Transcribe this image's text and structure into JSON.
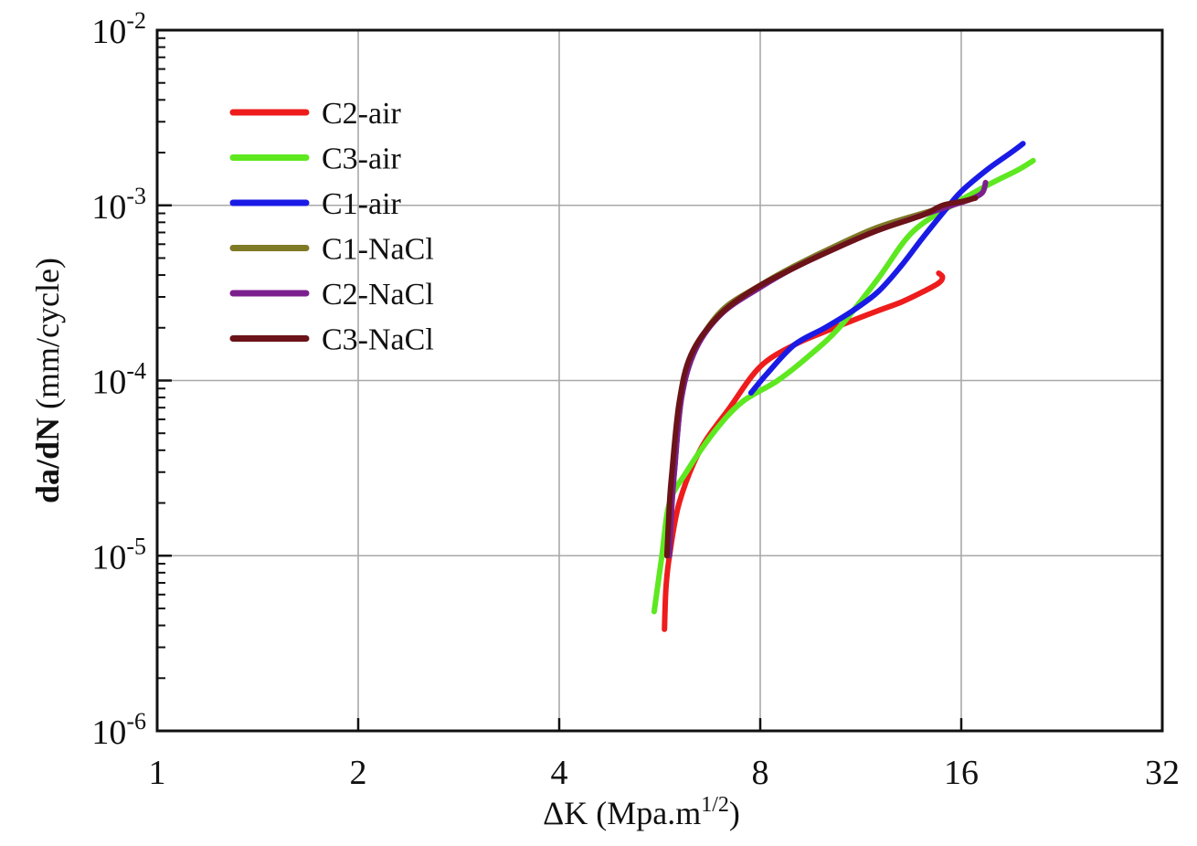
{
  "chart_data": {
    "type": "line",
    "xscale": "log2",
    "yscale": "log10",
    "xlabel_main": "ΔK (Mpa.m",
    "xlabel_sup": "1/2",
    "xlabel_end": ")",
    "ylabel_bold": "da/dN",
    "ylabel_rest": " (mm/cycle)",
    "xlim": [
      1,
      32
    ],
    "ylim": [
      1e-06,
      0.01
    ],
    "xticks": [
      {
        "value": 1,
        "label": "1"
      },
      {
        "value": 2,
        "label": "2"
      },
      {
        "value": 4,
        "label": "4"
      },
      {
        "value": 8,
        "label": "8"
      },
      {
        "value": 16,
        "label": "16"
      },
      {
        "value": 32,
        "label": "32"
      }
    ],
    "yticks": [
      {
        "value": 1e-06,
        "base": "10",
        "exp": "-6"
      },
      {
        "value": 1e-05,
        "base": "10",
        "exp": "-5"
      },
      {
        "value": 0.0001,
        "base": "10",
        "exp": "-4"
      },
      {
        "value": 0.001,
        "base": "10",
        "exp": "-3"
      },
      {
        "value": 0.01,
        "base": "10",
        "exp": "-2"
      }
    ],
    "grid": true,
    "legend_position": "top-left",
    "series": [
      {
        "name": "C2-air",
        "color": "#ee1c1c",
        "points": [
          [
            5.75,
            3.8e-06
          ],
          [
            5.78,
            6.5e-06
          ],
          [
            5.85,
            1e-05
          ],
          [
            6.05,
            2e-05
          ],
          [
            6.5,
            4e-05
          ],
          [
            7.2,
            7e-05
          ],
          [
            8.0,
            0.00012
          ],
          [
            9.0,
            0.00016
          ],
          [
            10.0,
            0.00019
          ],
          [
            11.0,
            0.00022
          ],
          [
            12.0,
            0.00025
          ],
          [
            13.0,
            0.00028
          ],
          [
            14.0,
            0.00032
          ],
          [
            14.8,
            0.00036
          ],
          [
            15.0,
            0.00039
          ],
          [
            14.8,
            0.00041
          ]
        ]
      },
      {
        "name": "C3-air",
        "color": "#5ee820",
        "points": [
          [
            5.55,
            4.8e-06
          ],
          [
            5.7,
            1e-05
          ],
          [
            5.85,
            2e-05
          ],
          [
            6.2,
            3e-05
          ],
          [
            6.8,
            5e-05
          ],
          [
            7.5,
            7.5e-05
          ],
          [
            8.5,
            0.0001
          ],
          [
            9.5,
            0.00014
          ],
          [
            10.5,
            0.0002
          ],
          [
            12.0,
            0.00038
          ],
          [
            13.5,
            0.0007
          ],
          [
            15.5,
            0.001
          ],
          [
            17.5,
            0.0013
          ],
          [
            19.5,
            0.0016
          ],
          [
            20.5,
            0.0018
          ]
        ]
      },
      {
        "name": "C1-air",
        "color": "#1a1ae6",
        "points": [
          [
            7.75,
            8.5e-05
          ],
          [
            8.2,
            0.00011
          ],
          [
            9.0,
            0.00016
          ],
          [
            10.0,
            0.0002
          ],
          [
            11.0,
            0.00025
          ],
          [
            12.0,
            0.00032
          ],
          [
            13.0,
            0.00045
          ],
          [
            14.0,
            0.00065
          ],
          [
            15.0,
            0.0009
          ],
          [
            16.0,
            0.0012
          ],
          [
            17.5,
            0.0016
          ],
          [
            19.0,
            0.002
          ],
          [
            19.8,
            0.00225
          ]
        ]
      },
      {
        "name": "C1-NaCl",
        "color": "#7f7a26",
        "points": [
          [
            5.85,
            1e-05
          ],
          [
            5.9,
            2e-05
          ],
          [
            5.95,
            3e-05
          ],
          [
            6.1,
            8e-05
          ],
          [
            6.4,
            0.00015
          ],
          [
            7.0,
            0.00025
          ],
          [
            8.0,
            0.00035
          ],
          [
            9.0,
            0.00045
          ],
          [
            10.5,
            0.0006
          ],
          [
            12.0,
            0.00075
          ],
          [
            14.0,
            0.0009
          ],
          [
            15.5,
            0.001
          ]
        ]
      },
      {
        "name": "C2-NaCl",
        "color": "#7c1f8e",
        "points": [
          [
            5.85,
            1e-05
          ],
          [
            5.9,
            2e-05
          ],
          [
            5.95,
            3e-05
          ],
          [
            6.1,
            8e-05
          ],
          [
            6.4,
            0.00015
          ],
          [
            7.0,
            0.00024
          ],
          [
            8.0,
            0.00034
          ],
          [
            9.0,
            0.00044
          ],
          [
            10.5,
            0.00058
          ],
          [
            12.0,
            0.00072
          ],
          [
            14.0,
            0.00088
          ],
          [
            15.5,
            0.001
          ],
          [
            16.5,
            0.00108
          ],
          [
            17.2,
            0.00118
          ],
          [
            17.4,
            0.00135
          ]
        ]
      },
      {
        "name": "C3-NaCl",
        "color": "#6b1318",
        "points": [
          [
            5.8,
            1e-05
          ],
          [
            5.85,
            2e-05
          ],
          [
            5.9,
            3e-05
          ],
          [
            6.05,
            7.5e-05
          ],
          [
            6.3,
            0.00014
          ],
          [
            6.9,
            0.00023
          ],
          [
            7.8,
            0.00033
          ],
          [
            9.0,
            0.00044
          ],
          [
            10.5,
            0.00058
          ],
          [
            12.0,
            0.00072
          ],
          [
            14.0,
            0.00088
          ],
          [
            15.0,
            0.001
          ],
          [
            16.0,
            0.00105
          ],
          [
            16.8,
            0.0011
          ]
        ]
      }
    ]
  }
}
